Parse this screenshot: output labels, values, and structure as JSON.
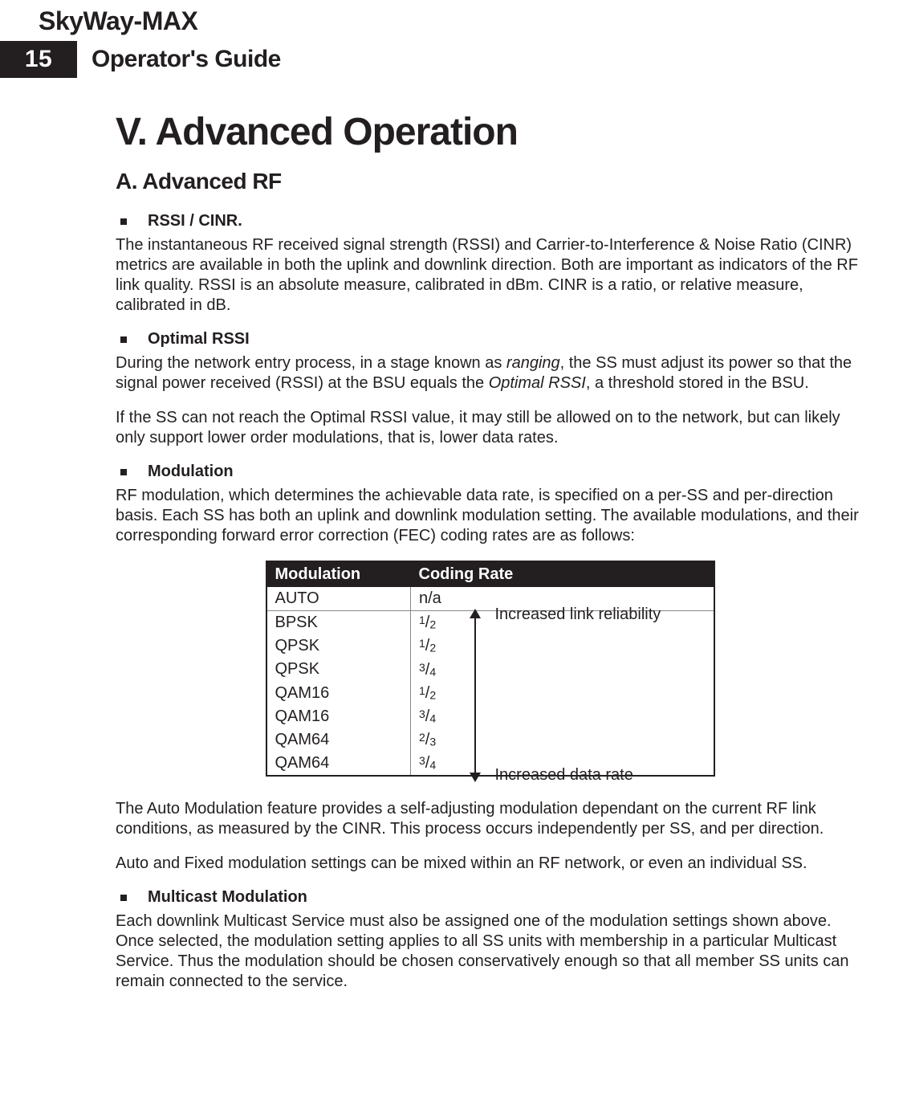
{
  "product_name": "SkyWay-MAX",
  "page_number": "15",
  "guide_title": "Operator's Guide",
  "chapter_title": "V.  Advanced Operation",
  "section_title": "A.  Advanced RF",
  "sub_rssi_cinr_title": "RSSI / CINR.",
  "sub_rssi_cinr_body": "The instantaneous RF received signal strength (RSSI) and Carrier-to-Interference & Noise Ratio (CINR) metrics are available in both the uplink and downlink direction.  Both are important as indicators of the RF link quality.  RSSI is an absolute measure, calibrated in dBm.  CINR is a ratio, or relative measure, calibrated in dB.",
  "sub_optimal_title": "Optimal RSSI",
  "sub_optimal_body_pre": "During the network entry process, in a stage known as ",
  "sub_optimal_italic1": "ranging",
  "sub_optimal_body_mid": ", the SS must adjust its power so that the signal power received (RSSI) at the BSU equals the ",
  "sub_optimal_italic2": "Optimal RSSI",
  "sub_optimal_body_post": ",  a threshold stored in the BSU.",
  "sub_optimal_body2": "If the SS can not reach the Optimal RSSI value, it may still be allowed on to the network, but can likely only support lower order modulations, that is, lower data rates.",
  "sub_modulation_title": "Modulation",
  "sub_modulation_body": "RF modulation, which determines the achievable data rate, is specified on a per-SS and per-direction basis.  Each SS has both an uplink and downlink modulation setting.  The available modulations, and their corresponding forward error correction (FEC) coding rates are as follows:",
  "table": {
    "header_col1": "Modulation",
    "header_col2": "Coding Rate",
    "header_bg": "#231f20",
    "header_fg": "#ffffff",
    "border_color": "#231f20",
    "rows": [
      {
        "mod": "AUTO",
        "rate": "n/a"
      },
      {
        "mod": "BPSK",
        "rate_num": "1",
        "rate_den": "2"
      },
      {
        "mod": "QPSK",
        "rate_num": "1",
        "rate_den": "2"
      },
      {
        "mod": "QPSK",
        "rate_num": "3",
        "rate_den": "4"
      },
      {
        "mod": "QAM16",
        "rate_num": "1",
        "rate_den": "2"
      },
      {
        "mod": "QAM16",
        "rate_num": "3",
        "rate_den": "4"
      },
      {
        "mod": "QAM64",
        "rate_num": "2",
        "rate_den": "3"
      },
      {
        "mod": "QAM64",
        "rate_num": "3",
        "rate_den": "4"
      }
    ],
    "arrow_label_top": "Increased link reliability",
    "arrow_label_bottom": "Increased data rate"
  },
  "auto_mod_para1": "The Auto Modulation feature provides a self-adjusting modulation dependant on the current RF link conditions, as measured by the CINR.  This process occurs independently per SS, and per direction.",
  "auto_mod_para2": "Auto and Fixed modulation settings can be mixed within an RF network, or even an individual SS.",
  "sub_multicast_title": "Multicast Modulation",
  "sub_multicast_body": "Each downlink Multicast Service must also be assigned one of the modulation settings shown above.  Once selected, the modulation setting applies to all SS units with membership in a particular Multicast Service.  Thus the modulation should be chosen conservatively enough so that all member SS units can remain connected to the service."
}
